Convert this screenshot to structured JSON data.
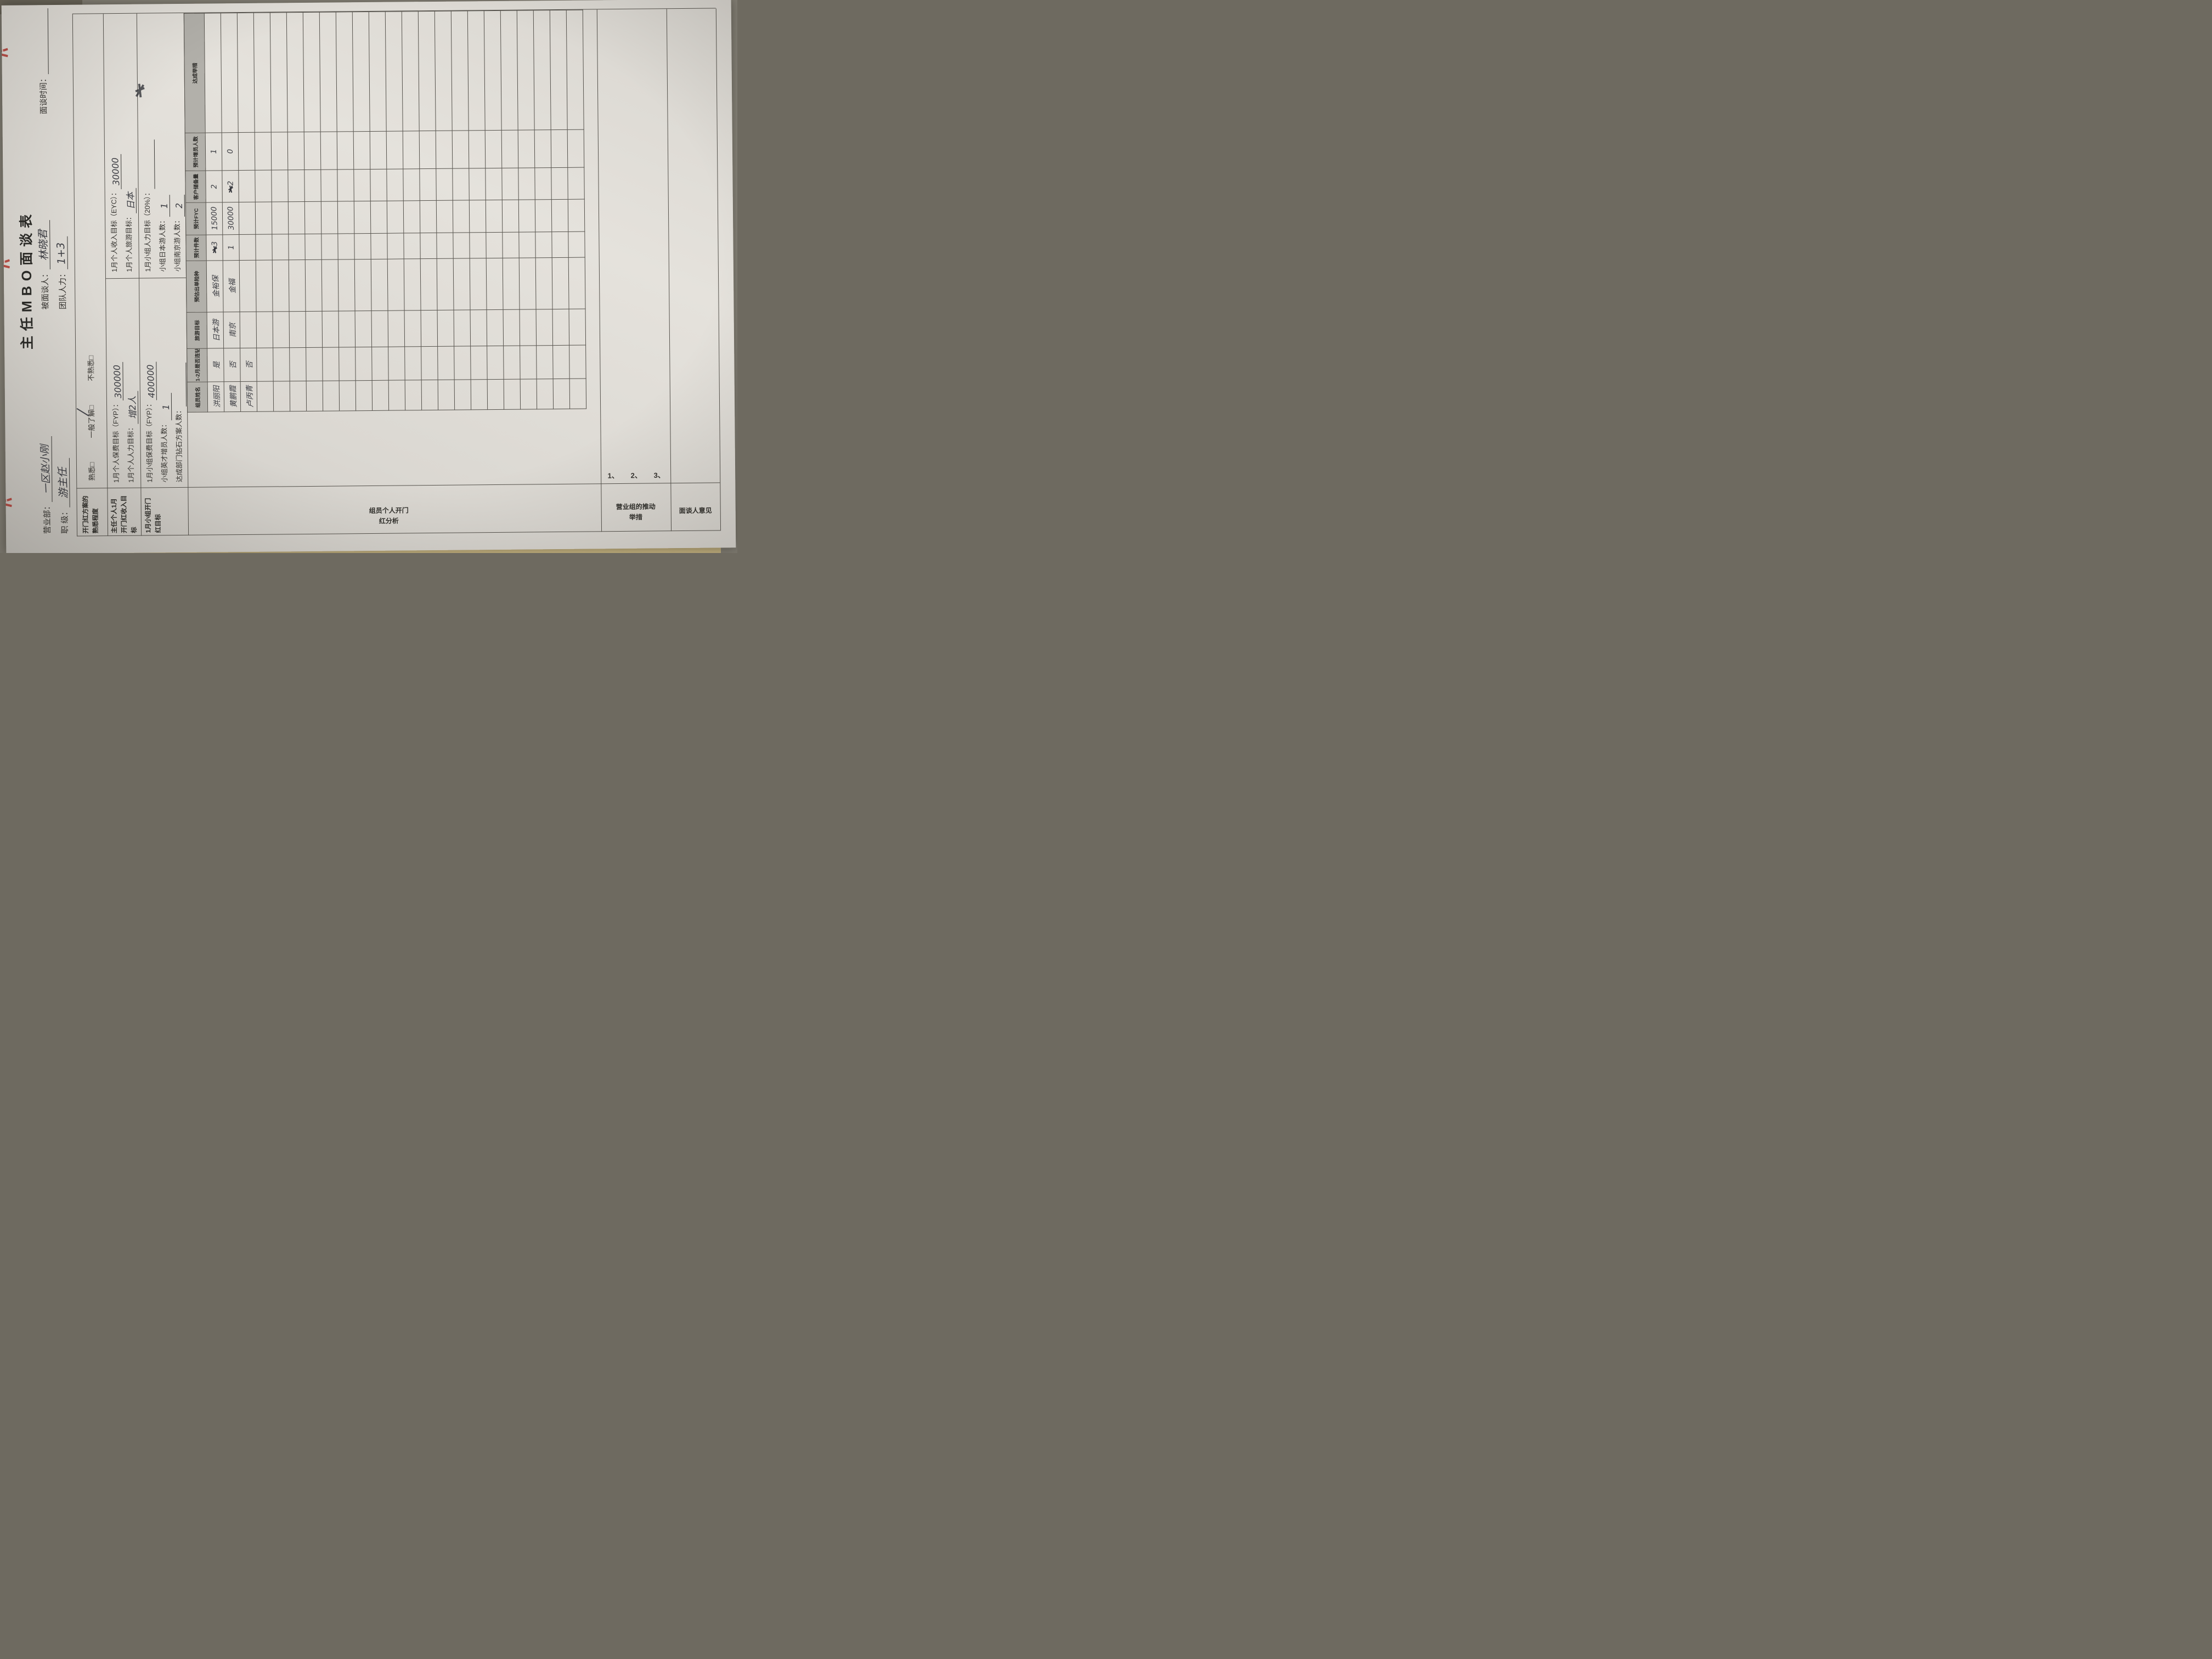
{
  "title": "主任MBO面谈表",
  "top_fields": {
    "yingyebu_label": "营业部：",
    "yingyebu_value": "一区赵小刚",
    "beimiantan_label": "被面谈人：",
    "beimiantan_value": "林晓君",
    "shijian_label": "面谈时间：",
    "shijian_value": "",
    "zhiji_label": "职  级：",
    "zhiji_value": "游主任",
    "tuandui_label": "团队人力：",
    "tuandui_value": "1+3"
  },
  "familiarity_row": {
    "label": "开门红方案的\n熟悉程度",
    "options": [
      "熟悉□",
      "一般了解□",
      "不熟悉□"
    ],
    "marked_index": 1
  },
  "personal_row": {
    "label": "主任个人1月\n开门红收入目\n标",
    "lines_left": [
      {
        "label": "1月个人保费目标（FYP）：",
        "value": "300000"
      },
      {
        "label": "1月个人人力目标：",
        "value": "增2人"
      }
    ],
    "lines_right": [
      {
        "label": "1月个人收入目标（EYC）：",
        "value": "30000"
      },
      {
        "label": "1月个人旅游目标：",
        "value": "日本"
      }
    ]
  },
  "group_row": {
    "label": "1月小组开门\n红目标",
    "lines_left": [
      {
        "label": "1月小组保费目标（FYP）：",
        "value": "400000"
      },
      {
        "label": "小组英才增员人数：",
        "value": "1"
      },
      {
        "label": "达成部门钻石方案人数：",
        "value": ""
      }
    ],
    "lines_right": [
      {
        "label": "1月小组人力目标（20%）：",
        "value": ""
      },
      {
        "label": "小组日本游人数：",
        "value": "1"
      },
      {
        "label": "小组南京游人数：",
        "value": "2"
      }
    ]
  },
  "analysis_section": {
    "label": "组员个人开门\n红分析"
  },
  "member_table": {
    "headers": [
      "组员姓名",
      "1-2月是否连钻",
      "旅游目标",
      "预估出单险种",
      "预计件数",
      "预计FYC",
      "客户储备量",
      "预计增员人数",
      "达成举措"
    ],
    "col_widths_pct": [
      7.5,
      8.5,
      9,
      13,
      6.5,
      8,
      8,
      9.5,
      30
    ],
    "rows": [
      [
        "洪丽阳",
        "是",
        "日本游",
        "金裕保",
        "3",
        "15000",
        "2",
        "1",
        ""
      ],
      [
        "黄鹏霞",
        "否",
        "南京",
        "金福",
        "1",
        "30000",
        "2",
        "0",
        ""
      ],
      [
        "卢丙青",
        "否",
        "",
        "",
        "",
        "",
        "",
        "",
        ""
      ]
    ],
    "empty_row_count": 20,
    "scribbles": [
      {
        "row": 0,
        "col": 4
      },
      {
        "row": 1,
        "col": 6
      }
    ]
  },
  "promotion_section": {
    "label": "营业组的推动\n举措",
    "items": [
      "1、",
      "2、",
      "3、"
    ]
  },
  "opinion_section": {
    "label": "面谈人意见"
  },
  "colors": {
    "paper": "#dbd8d2",
    "header_shade": "#b2b0aa",
    "print_ink": "#35332f",
    "handwriting_ink": "#3b3c42",
    "red_ink": "#b5342c",
    "desk": "#8d897e",
    "under_sheet": "#d8c48c"
  }
}
